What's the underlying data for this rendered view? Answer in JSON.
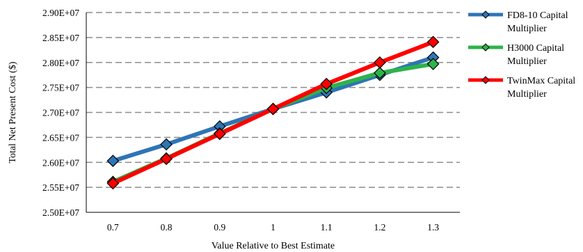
{
  "chart_data": {
    "type": "line",
    "title": "",
    "xlabel": "Value Relative to Best Estimate",
    "ylabel": "Total Net Present Cost ($)",
    "categories": [
      "0.7",
      "0.8",
      "0.9",
      "1",
      "1.1",
      "1.2",
      "1.3"
    ],
    "y_tick_labels": [
      "2.50E+07",
      "2.55E+07",
      "2.60E+07",
      "2.65E+07",
      "2.70E+07",
      "2.75E+07",
      "2.80E+07",
      "2.85E+07",
      "2.90E+07"
    ],
    "ylim": [
      25000000,
      29000000
    ],
    "grid": true,
    "legend_position": "right",
    "series": [
      {
        "name": "FD8-10 Capital Multiplier",
        "color": "#2e75b6",
        "values": [
          26030000,
          26360000,
          26720000,
          27070000,
          27400000,
          27750000,
          28100000
        ]
      },
      {
        "name": "H3000 Capital Multiplier",
        "color": "#2db34a",
        "values": [
          25610000,
          26080000,
          26580000,
          27070000,
          27490000,
          27790000,
          27970000
        ]
      },
      {
        "name": "TwinMax Capital Multiplier",
        "color": "#ff0000",
        "values": [
          25580000,
          26070000,
          26570000,
          27070000,
          27570000,
          28000000,
          28410000
        ]
      }
    ]
  }
}
